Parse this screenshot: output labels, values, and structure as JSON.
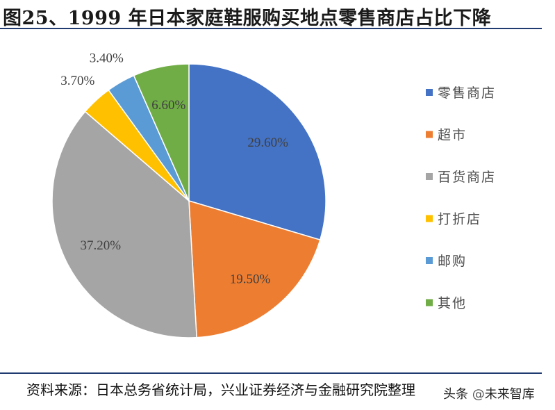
{
  "figure": {
    "title": "图25、1999 年日本家庭鞋服购买地点零售商店占比下降",
    "source": "资料来源：日本总务省统计局，兴业证券经济与金融研究院整理",
    "watermark": {
      "prefix": "头条",
      "at": "@",
      "name": "未来智库"
    }
  },
  "chart_data": {
    "type": "pie",
    "title": "",
    "start_angle_deg": 0,
    "direction": "clockwise",
    "legend_position": "right",
    "slices": [
      {
        "name": "零售商店",
        "value": 29.6,
        "label": "29.60%",
        "color": "#4472C4"
      },
      {
        "name": "超市",
        "value": 19.5,
        "label": "19.50%",
        "color": "#ED7D31"
      },
      {
        "name": "百货商店",
        "value": 37.2,
        "label": "37.20%",
        "color": "#A5A5A5"
      },
      {
        "name": "打折店",
        "value": 3.7,
        "label": "3.70%",
        "color": "#FFC000"
      },
      {
        "name": "邮购",
        "value": 3.4,
        "label": "3.40%",
        "color": "#5B9BD5"
      },
      {
        "name": "其他",
        "value": 6.6,
        "label": "6.60%",
        "color": "#70AD47"
      }
    ]
  }
}
